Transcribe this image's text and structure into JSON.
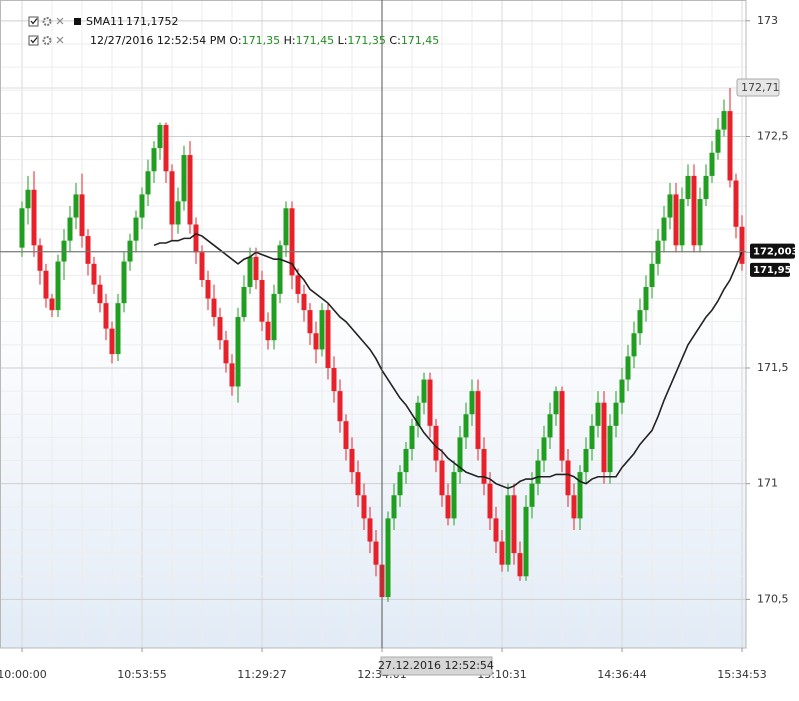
{
  "chart_data": {
    "type": "candlestick",
    "up_color": "#1f9e1f",
    "down_color": "#e8202a",
    "categories": [
      "10:00:00",
      null,
      null,
      null,
      null,
      null,
      null,
      null,
      null,
      null,
      null,
      null,
      null,
      null,
      null,
      null,
      null,
      null,
      null,
      null,
      "10:53:55",
      null,
      null,
      null,
      null,
      null,
      null,
      null,
      null,
      null,
      null,
      null,
      null,
      null,
      null,
      null,
      null,
      null,
      null,
      null,
      "11:29:27",
      null,
      null,
      null,
      null,
      null,
      null,
      null,
      null,
      null,
      null,
      null,
      null,
      null,
      null,
      null,
      null,
      null,
      null,
      null,
      "12:34:01",
      null,
      null,
      null,
      null,
      null,
      null,
      null,
      null,
      null,
      null,
      null,
      null,
      null,
      null,
      null,
      null,
      null,
      null,
      null,
      "13:10:31",
      null,
      null,
      null,
      null,
      null,
      null,
      null,
      null,
      null,
      null,
      null,
      null,
      null,
      null,
      null,
      null,
      null,
      null,
      null,
      "14:36:44",
      null,
      null,
      null,
      null,
      null,
      null,
      null,
      null,
      null,
      null,
      null,
      null,
      null,
      null,
      null,
      null,
      null,
      null,
      null,
      "15:34:53"
    ],
    "open": [
      172.02,
      172.19,
      172.27,
      172.03,
      171.92,
      171.8,
      171.75,
      171.96,
      172.05,
      172.15,
      172.25,
      172.07,
      171.95,
      171.86,
      171.78,
      171.67,
      171.56,
      171.78,
      171.96,
      172.05,
      172.15,
      172.25,
      172.35,
      172.45,
      172.55,
      172.35,
      172.12,
      172.22,
      172.42,
      172.12,
      172.0,
      171.88,
      171.8,
      171.72,
      171.62,
      171.52,
      171.42,
      171.72,
      171.85,
      171.98,
      171.88,
      171.7,
      171.62,
      171.82,
      172.03,
      172.19,
      171.9,
      171.82,
      171.75,
      171.65,
      171.58,
      171.75,
      171.5,
      171.4,
      171.27,
      171.15,
      171.05,
      170.95,
      170.85,
      170.75,
      170.65,
      170.51,
      170.85,
      170.95,
      171.05,
      171.15,
      171.25,
      171.35,
      171.45,
      171.25,
      171.1,
      170.95,
      170.85,
      171.05,
      171.2,
      171.3,
      171.4,
      171.15,
      171.0,
      170.85,
      170.75,
      170.65,
      170.95,
      170.7,
      170.6,
      170.9,
      171.0,
      171.1,
      171.2,
      171.3,
      171.4,
      171.1,
      170.95,
      170.85,
      171.05,
      171.15,
      171.25,
      171.35,
      171.05,
      171.25,
      171.35,
      171.45,
      171.55,
      171.65,
      171.75,
      171.85,
      171.95,
      172.05,
      172.15,
      172.25,
      172.03,
      172.23,
      172.33,
      172.03,
      172.23,
      172.33,
      172.43,
      172.53,
      172.61,
      172.31,
      172.11
    ],
    "high": [
      172.22,
      172.33,
      172.35,
      172.06,
      171.95,
      171.82,
      171.99,
      172.1,
      172.2,
      172.3,
      172.34,
      172.1,
      171.98,
      171.9,
      171.82,
      171.7,
      171.82,
      172.0,
      172.08,
      172.18,
      172.28,
      172.4,
      172.48,
      172.56,
      172.56,
      172.38,
      172.28,
      172.46,
      172.48,
      172.15,
      172.03,
      171.92,
      171.86,
      171.76,
      171.66,
      171.56,
      171.76,
      171.9,
      172.02,
      172.02,
      171.92,
      171.74,
      171.86,
      172.05,
      172.22,
      172.22,
      171.93,
      171.86,
      171.78,
      171.7,
      171.78,
      171.78,
      171.55,
      171.45,
      171.3,
      171.2,
      171.1,
      171.0,
      170.9,
      170.8,
      170.7,
      170.88,
      171.0,
      171.08,
      171.18,
      171.28,
      171.38,
      171.48,
      171.48,
      171.28,
      171.15,
      171.0,
      171.1,
      171.25,
      171.35,
      171.45,
      171.45,
      171.2,
      171.05,
      170.9,
      170.8,
      171.0,
      171.0,
      170.75,
      170.95,
      171.05,
      171.15,
      171.25,
      171.35,
      171.42,
      171.42,
      171.15,
      171.0,
      171.08,
      171.2,
      171.3,
      171.4,
      171.4,
      171.3,
      171.4,
      171.5,
      171.6,
      171.7,
      171.8,
      171.9,
      172.0,
      172.1,
      172.2,
      172.3,
      172.3,
      172.28,
      172.38,
      172.38,
      172.28,
      172.38,
      172.48,
      172.58,
      172.66,
      172.71,
      172.34,
      172.16
    ],
    "low": [
      171.98,
      172.12,
      171.98,
      171.86,
      171.76,
      171.72,
      171.72,
      171.88,
      172.0,
      172.1,
      172.02,
      171.9,
      171.82,
      171.74,
      171.62,
      171.52,
      171.53,
      171.74,
      171.92,
      172.0,
      172.1,
      172.2,
      172.3,
      172.4,
      172.3,
      172.05,
      172.08,
      172.18,
      172.08,
      171.95,
      171.85,
      171.75,
      171.68,
      171.58,
      171.48,
      171.38,
      171.35,
      171.7,
      171.82,
      171.84,
      171.66,
      171.58,
      171.58,
      171.78,
      171.98,
      171.84,
      171.78,
      171.7,
      171.6,
      171.52,
      171.55,
      171.45,
      171.35,
      171.22,
      171.1,
      171.0,
      170.9,
      170.8,
      170.7,
      170.6,
      170.5,
      170.49,
      170.8,
      170.9,
      171.0,
      171.1,
      171.2,
      171.3,
      171.2,
      171.05,
      170.9,
      170.82,
      170.82,
      171.0,
      171.15,
      171.25,
      171.1,
      170.95,
      170.8,
      170.7,
      170.62,
      170.62,
      170.65,
      170.58,
      170.58,
      170.85,
      170.95,
      171.05,
      171.15,
      171.25,
      171.05,
      170.9,
      170.8,
      170.8,
      171.0,
      171.1,
      171.2,
      171.0,
      171.0,
      171.2,
      171.3,
      171.4,
      171.5,
      171.6,
      171.7,
      171.8,
      171.9,
      172.0,
      172.1,
      172.0,
      172.0,
      172.2,
      172.0,
      172.0,
      172.2,
      172.3,
      172.4,
      172.5,
      172.28,
      172.06,
      171.92
    ],
    "close": [
      172.19,
      172.27,
      172.03,
      171.92,
      171.8,
      171.75,
      171.96,
      172.05,
      172.15,
      172.25,
      172.07,
      171.95,
      171.86,
      171.78,
      171.67,
      171.56,
      171.78,
      171.96,
      172.05,
      172.15,
      172.25,
      172.35,
      172.45,
      172.55,
      172.35,
      172.12,
      172.22,
      172.42,
      172.12,
      172.0,
      171.88,
      171.8,
      171.72,
      171.62,
      171.52,
      171.42,
      171.72,
      171.85,
      171.98,
      171.88,
      171.7,
      171.62,
      171.82,
      172.03,
      172.19,
      171.9,
      171.82,
      171.75,
      171.65,
      171.58,
      171.75,
      171.5,
      171.4,
      171.27,
      171.15,
      171.05,
      170.95,
      170.85,
      170.75,
      170.65,
      170.51,
      170.85,
      170.95,
      171.05,
      171.15,
      171.25,
      171.35,
      171.45,
      171.25,
      171.1,
      170.95,
      170.85,
      171.05,
      171.2,
      171.3,
      171.4,
      171.15,
      171.0,
      170.85,
      170.75,
      170.65,
      170.95,
      170.7,
      170.6,
      170.9,
      171.0,
      171.1,
      171.2,
      171.3,
      171.4,
      171.1,
      170.95,
      170.85,
      171.05,
      171.15,
      171.25,
      171.35,
      171.05,
      171.25,
      171.35,
      171.45,
      171.55,
      171.65,
      171.75,
      171.85,
      171.95,
      172.05,
      172.15,
      172.25,
      172.03,
      172.23,
      172.33,
      172.03,
      172.23,
      172.33,
      172.43,
      172.53,
      172.61,
      172.31,
      172.11,
      171.95
    ],
    "series": [
      {
        "name": "SMA11",
        "color": "#222222",
        "legend_value": "171,1752",
        "values": [
          null,
          null,
          null,
          null,
          null,
          null,
          null,
          null,
          null,
          null,
          null,
          null,
          null,
          null,
          null,
          null,
          null,
          null,
          null,
          null,
          null,
          null,
          172.03,
          172.04,
          172.04,
          172.05,
          172.05,
          172.06,
          172.06,
          172.08,
          172.07,
          172.05,
          172.03,
          172.01,
          171.99,
          171.97,
          171.95,
          171.97,
          171.98,
          172.0,
          171.99,
          171.98,
          171.97,
          171.97,
          171.96,
          171.95,
          171.91,
          171.88,
          171.84,
          171.82,
          171.8,
          171.78,
          171.75,
          171.72,
          171.7,
          171.67,
          171.64,
          171.61,
          171.58,
          171.54,
          171.49,
          171.45,
          171.41,
          171.37,
          171.34,
          171.3,
          171.26,
          171.22,
          171.19,
          171.16,
          171.14,
          171.11,
          171.09,
          171.07,
          171.05,
          171.04,
          171.03,
          171.03,
          171.02,
          171.0,
          170.99,
          170.98,
          170.99,
          171.01,
          171.02,
          171.02,
          171.03,
          171.03,
          171.03,
          171.04,
          171.04,
          171.04,
          171.03,
          171.01,
          171.0,
          171.02,
          171.03,
          171.03,
          171.03,
          171.03,
          171.07,
          171.1,
          171.13,
          171.17,
          171.2,
          171.23,
          171.29,
          171.36,
          171.42,
          171.48,
          171.54,
          171.6,
          171.64,
          171.68,
          171.72,
          171.75,
          171.79,
          171.84,
          171.88,
          171.94,
          172.003
        ]
      }
    ],
    "ohlc_legend": {
      "datetime": "12/27/2016 12:52:54 PM",
      "items": [
        {
          "key": "O:",
          "value": "171,35"
        },
        {
          "key": "H:",
          "value": "171,45"
        },
        {
          "key": "L:",
          "value": "171,35"
        },
        {
          "key": "C:",
          "value": "171,45"
        }
      ]
    },
    "ylim": [
      170.29,
      173.09
    ],
    "yticks": [
      {
        "value": 170.5,
        "label": "170,5"
      },
      171,
      {
        "value": 171.5,
        "label": "171,5"
      },
      172,
      {
        "value": 172.5,
        "label": "172,5"
      },
      173
    ],
    "grid": true,
    "crosshair": {
      "x_label": "27.12.2016 12:52:54",
      "y_value": 172.003,
      "y_label": "172,003"
    },
    "price_labels": [
      {
        "value": 172.71,
        "label": "172,71"
      },
      {
        "value": 171.95,
        "label": "171,95"
      }
    ]
  }
}
